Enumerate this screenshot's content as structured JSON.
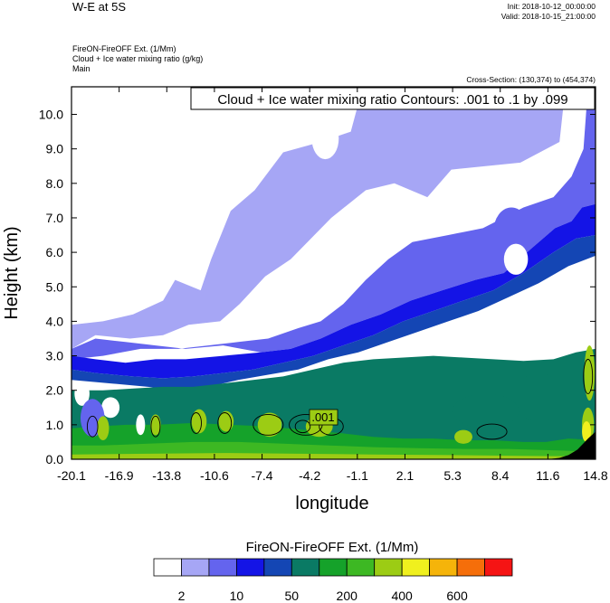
{
  "header": {
    "title": "W-E at 5S",
    "init": "Init: 2018-10-12_00:00:00",
    "valid": "Valid: 2018-10-15_21:00:00",
    "subtitle_lines": [
      "FireON-FireOFF Ext.   (1/Mm)",
      "Cloud + Ice water mixing ratio   (g/kg)",
      "Main"
    ],
    "cross_section": "Cross-Section: (130,374) to (454,374)"
  },
  "chart_data": {
    "type": "heatmap",
    "contour_label": "Cloud + Ice water mixing ratio Contours: .001 to .1 by .099",
    "contour_value_label": ".001",
    "xlabel": "longitude",
    "ylabel": "Height (km)",
    "xlim": [
      -20.1,
      14.8
    ],
    "ylim": [
      0,
      10.8
    ],
    "x_ticks": [
      "-20.1",
      "-16.9",
      "-13.8",
      "-10.6",
      "-7.4",
      "-4.2",
      "-1.1",
      "2.1",
      "5.3",
      "8.4",
      "11.6",
      "14.8"
    ],
    "y_ticks": [
      "0.0",
      "1.0",
      "2.0",
      "3.0",
      "4.0",
      "5.0",
      "6.0",
      "7.0",
      "8.0",
      "9.0",
      "10.0"
    ],
    "levels_upper": [
      {
        "level": 1,
        "points": [
          [
            -20.1,
            0
          ],
          [
            14.8,
            0
          ],
          [
            14.8,
            10.8
          ],
          [
            -20.1,
            10.8
          ]
        ]
      },
      {
        "level": 2,
        "points": [
          [
            -20.1,
            3.9
          ],
          [
            -18.0,
            4.0
          ],
          [
            -16.0,
            4.2
          ],
          [
            -14.0,
            4.6
          ],
          [
            -13.2,
            5.2
          ],
          [
            -11.5,
            4.9
          ],
          [
            -10.8,
            5.8
          ],
          [
            -9.5,
            7.2
          ],
          [
            -7.9,
            7.8
          ],
          [
            -6.0,
            8.9
          ],
          [
            -3.5,
            9.2
          ],
          [
            -1.5,
            9.5
          ],
          [
            -0.7,
            10.8
          ],
          [
            12.8,
            10.8
          ],
          [
            12.4,
            9.2
          ],
          [
            9.8,
            8.6
          ],
          [
            5.2,
            8.4
          ],
          [
            3.6,
            7.6
          ],
          [
            1.4,
            8.0
          ],
          [
            -0.5,
            7.8
          ],
          [
            -2.8,
            7.0
          ],
          [
            -5.5,
            5.8
          ],
          [
            -7.2,
            5.3
          ],
          [
            -8.9,
            4.5
          ],
          [
            -10.2,
            4.0
          ],
          [
            -12.3,
            3.9
          ],
          [
            -14.0,
            3.6
          ],
          [
            -16.2,
            3.5
          ],
          [
            -18.5,
            3.6
          ],
          [
            -20.1,
            3.2
          ]
        ]
      },
      {
        "level": 3,
        "points": [
          [
            -20.1,
            3.2
          ],
          [
            -18.5,
            3.5
          ],
          [
            -16.5,
            3.4
          ],
          [
            -14.5,
            3.3
          ],
          [
            -12.5,
            3.2
          ],
          [
            -10.0,
            3.3
          ],
          [
            -7.5,
            3.1
          ],
          [
            -5.5,
            3.2
          ],
          [
            -3.5,
            3.5
          ],
          [
            -1.5,
            3.9
          ],
          [
            0.5,
            4.2
          ],
          [
            2.5,
            4.6
          ],
          [
            4.6,
            4.9
          ],
          [
            6.8,
            5.2
          ],
          [
            8.7,
            5.4
          ],
          [
            10.5,
            6.1
          ],
          [
            12.1,
            6.7
          ],
          [
            13.2,
            6.9
          ],
          [
            13.9,
            7.3
          ],
          [
            14.8,
            7.4
          ],
          [
            14.8,
            10.8
          ],
          [
            14.3,
            10.8
          ],
          [
            14.0,
            9.0
          ],
          [
            13.2,
            8.2
          ],
          [
            12.0,
            7.6
          ],
          [
            10.0,
            7.3
          ],
          [
            7.3,
            6.7
          ],
          [
            5.0,
            6.5
          ],
          [
            2.6,
            6.3
          ],
          [
            1.0,
            5.8
          ],
          [
            -0.5,
            5.2
          ],
          [
            -2.0,
            4.5
          ],
          [
            -3.5,
            4.0
          ],
          [
            -5.0,
            3.8
          ],
          [
            -7.0,
            3.5
          ],
          [
            -9.0,
            3.4
          ],
          [
            -11.0,
            3.3
          ],
          [
            -13.0,
            3.2
          ],
          [
            -15.5,
            3.2
          ],
          [
            -18.0,
            3.0
          ],
          [
            -20.1,
            2.9
          ]
        ]
      },
      {
        "level": 4,
        "points": [
          [
            -20.1,
            2.6
          ],
          [
            -18.5,
            2.5
          ],
          [
            -16.0,
            2.4
          ],
          [
            -14.0,
            2.35
          ],
          [
            -12.0,
            2.4
          ],
          [
            -10.0,
            2.5
          ],
          [
            -8.0,
            2.6
          ],
          [
            -6.0,
            2.8
          ],
          [
            -4.0,
            3.0
          ],
          [
            -2.0,
            3.3
          ],
          [
            0.0,
            3.6
          ],
          [
            2.0,
            4.0
          ],
          [
            4.0,
            4.3
          ],
          [
            6.0,
            4.6
          ],
          [
            8.0,
            4.9
          ],
          [
            10.0,
            5.4
          ],
          [
            12.0,
            6.0
          ],
          [
            13.5,
            6.4
          ],
          [
            14.8,
            6.5
          ],
          [
            14.8,
            7.4
          ],
          [
            13.9,
            7.3
          ],
          [
            13.2,
            6.9
          ],
          [
            12.1,
            6.7
          ],
          [
            10.5,
            6.1
          ],
          [
            8.7,
            5.4
          ],
          [
            6.8,
            5.2
          ],
          [
            4.6,
            4.9
          ],
          [
            2.5,
            4.6
          ],
          [
            0.5,
            4.2
          ],
          [
            -1.5,
            3.9
          ],
          [
            -3.5,
            3.5
          ],
          [
            -5.5,
            3.2
          ],
          [
            -7.5,
            3.1
          ],
          [
            -10.0,
            3.0
          ],
          [
            -12.5,
            2.9
          ],
          [
            -14.5,
            2.9
          ],
          [
            -16.5,
            2.8
          ],
          [
            -18.5,
            2.9
          ],
          [
            -20.1,
            3.0
          ]
        ]
      },
      {
        "level": 5,
        "points": [
          [
            -20.1,
            2.3
          ],
          [
            -17.5,
            2.2
          ],
          [
            -15.0,
            2.1
          ],
          [
            -13.0,
            2.0
          ],
          [
            -11.0,
            2.1
          ],
          [
            -9.0,
            2.3
          ],
          [
            -7.0,
            2.45
          ],
          [
            -5.0,
            2.6
          ],
          [
            -3.0,
            2.9
          ],
          [
            -1.0,
            3.1
          ],
          [
            1.0,
            3.4
          ],
          [
            3.0,
            3.7
          ],
          [
            5.0,
            4.0
          ],
          [
            7.0,
            4.3
          ],
          [
            9.0,
            4.7
          ],
          [
            11.0,
            5.1
          ],
          [
            13.0,
            5.6
          ],
          [
            14.8,
            5.9
          ],
          [
            14.8,
            6.5
          ],
          [
            13.5,
            6.4
          ],
          [
            12.0,
            6.0
          ],
          [
            10.0,
            5.4
          ],
          [
            8.0,
            4.9
          ],
          [
            6.0,
            4.6
          ],
          [
            4.0,
            4.3
          ],
          [
            2.0,
            4.0
          ],
          [
            0.0,
            3.6
          ],
          [
            -2.0,
            3.3
          ],
          [
            -4.0,
            3.0
          ],
          [
            -6.0,
            2.8
          ],
          [
            -8.0,
            2.6
          ],
          [
            -10.0,
            2.5
          ],
          [
            -12.0,
            2.4
          ],
          [
            -14.0,
            2.35
          ],
          [
            -16.0,
            2.4
          ],
          [
            -18.5,
            2.5
          ],
          [
            -20.1,
            2.6
          ]
        ]
      }
    ],
    "levels_lower": [
      {
        "level": 6,
        "points": [
          [
            -20.1,
            0
          ],
          [
            14.8,
            0
          ],
          [
            14.8,
            3.2
          ],
          [
            13.5,
            3.1
          ],
          [
            12.0,
            2.9
          ],
          [
            10.0,
            2.85
          ],
          [
            8.0,
            2.9
          ],
          [
            6.0,
            2.95
          ],
          [
            4.0,
            3.0
          ],
          [
            2.0,
            2.95
          ],
          [
            0.0,
            2.9
          ],
          [
            -2.0,
            2.8
          ],
          [
            -4.0,
            2.6
          ],
          [
            -6.0,
            2.4
          ],
          [
            -8.0,
            2.3
          ],
          [
            -10.0,
            2.2
          ],
          [
            -12.0,
            2.1
          ],
          [
            -14.0,
            2.1
          ],
          [
            -16.0,
            2.05
          ],
          [
            -18.0,
            2.0
          ],
          [
            -20.1,
            2.0
          ]
        ]
      },
      {
        "level": 7,
        "points": [
          [
            -20.1,
            0
          ],
          [
            14.8,
            0
          ],
          [
            14.8,
            0.55
          ],
          [
            13.0,
            0.6
          ],
          [
            11.5,
            0.5
          ],
          [
            10.0,
            0.5
          ],
          [
            8.0,
            0.55
          ],
          [
            6.0,
            0.55
          ],
          [
            4.0,
            0.6
          ],
          [
            2.0,
            0.6
          ],
          [
            0.0,
            0.65
          ],
          [
            -2.0,
            0.75
          ],
          [
            -4.5,
            0.85
          ],
          [
            -7.0,
            0.95
          ],
          [
            -9.5,
            1.0
          ],
          [
            -12.0,
            1.05
          ],
          [
            -14.5,
            1.0
          ],
          [
            -16.5,
            1.0
          ],
          [
            -18.5,
            0.95
          ],
          [
            -20.1,
            0.9
          ]
        ]
      },
      {
        "level": 8,
        "points": [
          [
            -20.1,
            0
          ],
          [
            14.8,
            0
          ],
          [
            14.8,
            0.22
          ],
          [
            12.0,
            0.26
          ],
          [
            9.0,
            0.3
          ],
          [
            6.0,
            0.3
          ],
          [
            3.0,
            0.32
          ],
          [
            0.0,
            0.35
          ],
          [
            -3.0,
            0.4
          ],
          [
            -6.0,
            0.45
          ],
          [
            -9.0,
            0.5
          ],
          [
            -12.0,
            0.5
          ],
          [
            -15.0,
            0.45
          ],
          [
            -18.0,
            0.4
          ],
          [
            -20.1,
            0.4
          ]
        ]
      },
      {
        "level": 9,
        "points": [
          [
            -20.1,
            0
          ],
          [
            14.8,
            0
          ],
          [
            14.8,
            0.08
          ],
          [
            10.0,
            0.1
          ],
          [
            5.0,
            0.12
          ],
          [
            0.0,
            0.14
          ],
          [
            -5.0,
            0.16
          ],
          [
            -10.0,
            0.18
          ],
          [
            -15.0,
            0.16
          ],
          [
            -20.1,
            0.14
          ]
        ]
      }
    ],
    "patches": [
      {
        "level": 1,
        "cx": -19.4,
        "cy": 1.9,
        "rx": 0.5,
        "ry": 0.35
      },
      {
        "level": 1,
        "cx": -17.5,
        "cy": 1.5,
        "rx": 0.6,
        "ry": 0.3
      },
      {
        "level": 1,
        "cx": -15.5,
        "cy": 1.0,
        "rx": 0.3,
        "ry": 0.3
      },
      {
        "level": 3,
        "cx": -18.7,
        "cy": 1.2,
        "rx": 0.8,
        "ry": 0.55
      },
      {
        "level": 6,
        "cx": 11.0,
        "cy": 1.8,
        "rx": 1.6,
        "ry": 0.7
      },
      {
        "level": 6,
        "cx": 7.5,
        "cy": 1.4,
        "rx": 2.2,
        "ry": 0.5
      },
      {
        "level": 3,
        "cx": 9.2,
        "cy": 6.6,
        "rx": 1.2,
        "ry": 0.7
      },
      {
        "level": 1,
        "cx": 9.5,
        "cy": 5.8,
        "rx": 0.8,
        "ry": 0.45
      },
      {
        "level": 1,
        "cx": -3.2,
        "cy": 9.3,
        "rx": 0.9,
        "ry": 0.6
      },
      {
        "level": 9,
        "cx": -18.0,
        "cy": 0.9,
        "rx": 0.4,
        "ry": 0.35
      },
      {
        "level": 9,
        "cx": -14.5,
        "cy": 1.0,
        "rx": 0.35,
        "ry": 0.3
      },
      {
        "level": 9,
        "cx": -11.6,
        "cy": 1.1,
        "rx": 0.5,
        "ry": 0.35
      },
      {
        "level": 9,
        "cx": -9.8,
        "cy": 1.1,
        "rx": 0.5,
        "ry": 0.3
      },
      {
        "level": 9,
        "cx": -6.9,
        "cy": 1.0,
        "rx": 0.8,
        "ry": 0.35
      },
      {
        "level": 9,
        "cx": -3.6,
        "cy": 0.95,
        "rx": 0.9,
        "ry": 0.3
      },
      {
        "level": 9,
        "cx": 6.0,
        "cy": 0.65,
        "rx": 0.6,
        "ry": 0.2
      },
      {
        "level": 9,
        "cx": 14.4,
        "cy": 2.5,
        "rx": 0.35,
        "ry": 0.8
      },
      {
        "level": 9,
        "cx": 14.3,
        "cy": 1.0,
        "rx": 0.4,
        "ry": 0.5
      },
      {
        "level": 10,
        "cx": 14.2,
        "cy": 0.8,
        "rx": 0.3,
        "ry": 0.3
      }
    ],
    "terrain": [
      [
        11.6,
        0
      ],
      [
        12.4,
        0.04
      ],
      [
        13.0,
        0.12
      ],
      [
        13.6,
        0.28
      ],
      [
        14.3,
        0.6
      ],
      [
        14.8,
        0.8
      ],
      [
        14.8,
        0
      ]
    ],
    "contours": [
      {
        "cx": -18.7,
        "cy": 0.95,
        "rx": 0.35,
        "ry": 0.3
      },
      {
        "cx": -14.5,
        "cy": 0.95,
        "rx": 0.3,
        "ry": 0.3
      },
      {
        "cx": -11.8,
        "cy": 1.05,
        "rx": 0.35,
        "ry": 0.3
      },
      {
        "cx": -9.9,
        "cy": 1.05,
        "rx": 0.45,
        "ry": 0.3
      },
      {
        "cx": -7.0,
        "cy": 1.0,
        "rx": 1.0,
        "ry": 0.3
      },
      {
        "cx": -4.5,
        "cy": 1.0,
        "rx": 1.1,
        "ry": 0.3
      },
      {
        "cx": -4.7,
        "cy": 0.95,
        "rx": 0.5,
        "ry": 0.18
      },
      {
        "cx": -2.8,
        "cy": 0.95,
        "rx": 0.8,
        "ry": 0.25
      },
      {
        "cx": 7.9,
        "cy": 0.8,
        "rx": 1.0,
        "ry": 0.22
      },
      {
        "cx": 14.3,
        "cy": 2.4,
        "rx": 0.3,
        "ry": 0.5
      }
    ],
    "colorbar": {
      "title": "FireON-FireOFF Ext.  (1/Mm)",
      "tick_labels": [
        "2",
        "10",
        "50",
        "200",
        "400",
        "600"
      ],
      "colors": [
        "#ffffff",
        "#a6a6f5",
        "#6464ee",
        "#1414e6",
        "#1446b4",
        "#0a7a64",
        "#15a22a",
        "#3db823",
        "#9ccc14",
        "#f0f01e",
        "#f5b40a",
        "#f56e0a",
        "#f51414"
      ]
    }
  }
}
